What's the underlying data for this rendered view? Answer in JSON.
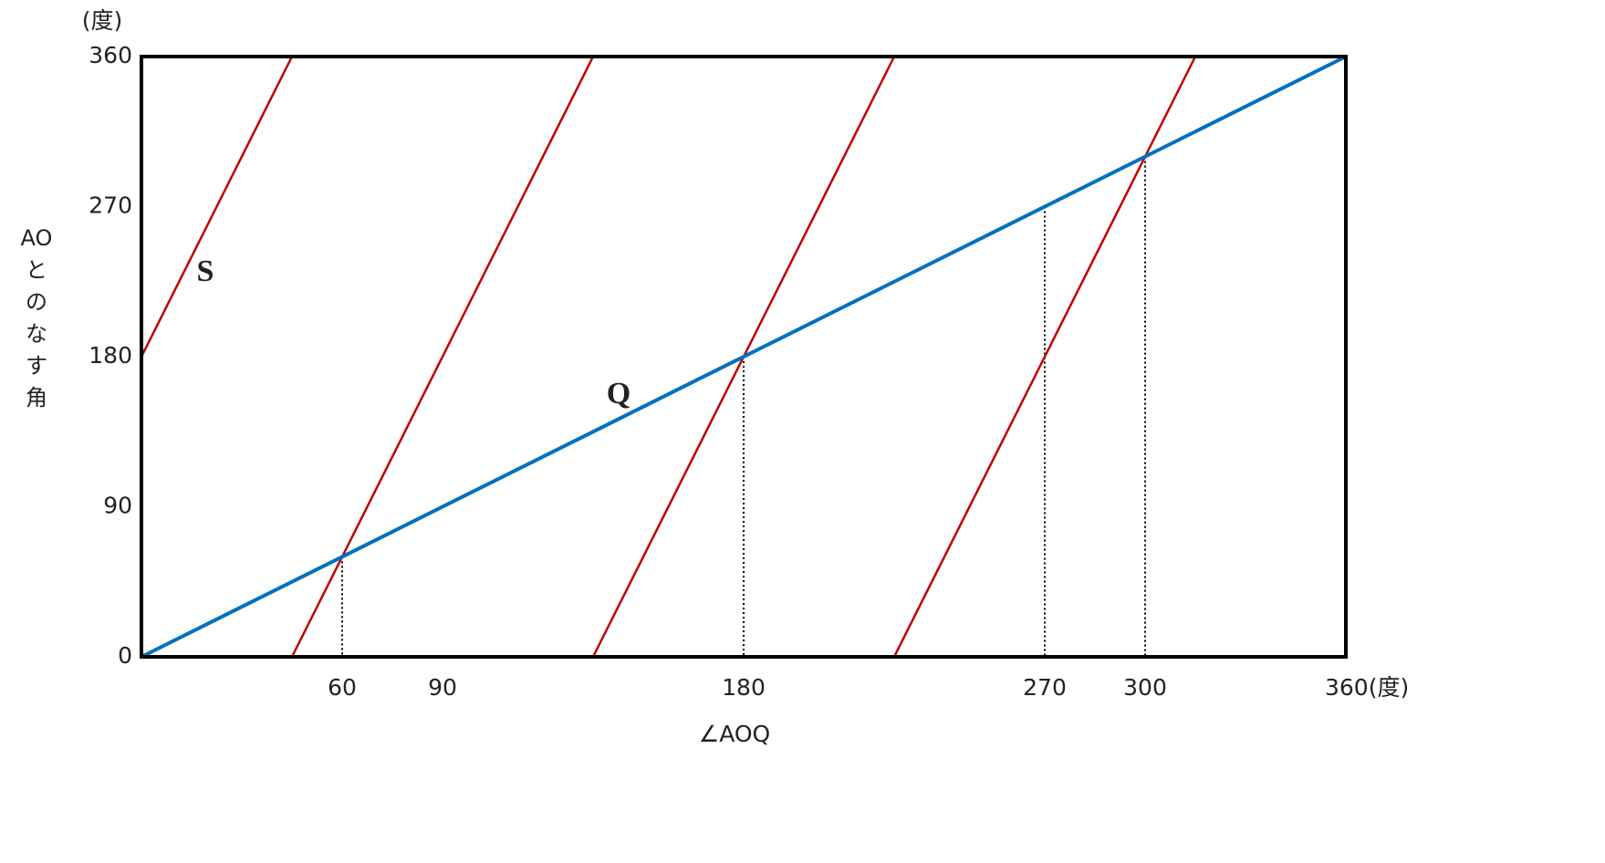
{
  "chart_data": {
    "type": "line",
    "x_label": "∠AOQ",
    "y_label": "AOとのなす角",
    "y_unit": "(度)",
    "xlim": [
      0,
      360
    ],
    "ylim": [
      0,
      360
    ],
    "xticks": [
      60,
      90,
      180,
      270,
      300,
      {
        "value": 360,
        "label": "360(度)"
      }
    ],
    "yticks": [
      0,
      90,
      180,
      270,
      360
    ],
    "series": [
      {
        "name": "S",
        "color": "#c00000",
        "x": [
          0,
          45,
          45,
          45,
          135,
          135,
          135,
          225,
          225,
          225,
          315
        ],
        "values": [
          180,
          360,
          null,
          0,
          360,
          null,
          0,
          360,
          null,
          0,
          360
        ]
      },
      {
        "name": "Q",
        "color": "#0070c0",
        "x": [
          0,
          360
        ],
        "values": [
          0,
          360
        ]
      }
    ],
    "drop_lines": {
      "x": [
        60,
        180,
        270,
        300
      ],
      "values": [
        60,
        180,
        270,
        300
      ]
    }
  }
}
